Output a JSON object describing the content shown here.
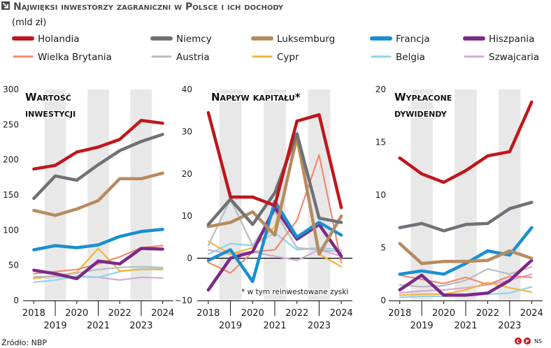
{
  "header": {
    "title": "Najwięksi inwestorzy zagraniczni w Polsce i ich dochody",
    "unit": "(mld zł)"
  },
  "colors": {
    "Holandia": "#c0161b",
    "Niemcy": "#6e7276",
    "Luksemburg": "#b88a5f",
    "Francja": "#1a8fd0",
    "Hiszpania": "#7b2a87",
    "Wielka Brytania": "#ef8a72",
    "Austria": "#b8bdc0",
    "Cypr": "#f2b53a",
    "Belgia": "#8fd3ef",
    "Szwajcaria": "#d2a8d8"
  },
  "legend": [
    "Holandia",
    "Niemcy",
    "Luksemburg",
    "Francja",
    "Hiszpania",
    "Wielka Brytania",
    "Austria",
    "Cypr",
    "Belgia",
    "Szwajcaria"
  ],
  "chart_data": [
    {
      "type": "line",
      "title": [
        "Wartość",
        "inwestycji"
      ],
      "x": [
        2018,
        2019,
        2020,
        2021,
        2022,
        2023,
        2024
      ],
      "x_ticks_top": [
        "2018",
        "2020",
        "2022",
        "2024"
      ],
      "x_ticks_bottom": [
        "2019",
        "2021",
        "2023"
      ],
      "ylim": [
        0,
        300
      ],
      "yticks": [
        0,
        50,
        100,
        150,
        200,
        250,
        300
      ],
      "series": [
        {
          "name": "Holandia",
          "values": [
            187,
            192,
            211,
            218,
            229,
            256,
            252
          ]
        },
        {
          "name": "Niemcy",
          "values": [
            145,
            177,
            171,
            193,
            213,
            226,
            236
          ]
        },
        {
          "name": "Luksemburg",
          "values": [
            128,
            121,
            130,
            142,
            173,
            173,
            181
          ]
        },
        {
          "name": "Francja",
          "values": [
            72,
            78,
            75,
            79,
            91,
            98,
            101
          ]
        },
        {
          "name": "Hiszpania",
          "values": [
            43,
            38,
            31,
            56,
            52,
            74,
            73
          ]
        },
        {
          "name": "Wielka Brytania",
          "values": [
            38,
            41,
            44,
            52,
            62,
            75,
            78
          ]
        },
        {
          "name": "Austria",
          "values": [
            34,
            34,
            39,
            44,
            47,
            48,
            47
          ]
        },
        {
          "name": "Cypr",
          "values": [
            31,
            35,
            40,
            74,
            42,
            44,
            44
          ]
        },
        {
          "name": "Belgia",
          "values": [
            26,
            29,
            35,
            33,
            41,
            45,
            45
          ]
        },
        {
          "name": "Szwajcaria",
          "values": [
            33,
            34,
            34,
            33,
            29,
            33,
            32
          ]
        }
      ]
    },
    {
      "type": "line",
      "title": [
        "Napływ kapitału*"
      ],
      "note": "* w tym reinwestowane zyski",
      "x": [
        2018,
        2019,
        2020,
        2021,
        2022,
        2023,
        2024
      ],
      "x_ticks_top": [
        "2018",
        "2020",
        "2022",
        "2024"
      ],
      "x_ticks_bottom": [
        "2019",
        "2021",
        "2023"
      ],
      "ylim": [
        -10,
        40
      ],
      "yticks": [
        -10,
        0,
        10,
        20,
        30,
        40
      ],
      "zero_line": true,
      "series": [
        {
          "name": "Holandia",
          "values": [
            34.5,
            14.5,
            14.5,
            12.5,
            32.5,
            34.0,
            12.0
          ]
        },
        {
          "name": "Niemcy",
          "values": [
            8.0,
            14.0,
            8.0,
            15.5,
            29.5,
            9.5,
            8.5
          ]
        },
        {
          "name": "Luksemburg",
          "values": [
            7.5,
            8.5,
            11.0,
            5.5,
            29.0,
            1.0,
            10.0
          ]
        },
        {
          "name": "Francja",
          "values": [
            -0.5,
            2.0,
            -5.5,
            13.5,
            5.0,
            8.5,
            5.5
          ]
        },
        {
          "name": "Hiszpania",
          "values": [
            -7.5,
            0.0,
            1.5,
            12.0,
            4.5,
            8.0,
            0.5
          ]
        },
        {
          "name": "Wielka Brytania",
          "values": [
            -1.0,
            -3.5,
            1.5,
            2.0,
            9.0,
            24.5,
            -1.0
          ]
        },
        {
          "name": "Austria",
          "values": [
            3.0,
            14.0,
            3.0,
            11.0,
            2.5,
            2.0,
            1.5
          ]
        },
        {
          "name": "Cypr",
          "values": [
            4.0,
            1.0,
            2.5,
            7.5,
            27.5,
            1.0,
            -2.0
          ]
        },
        {
          "name": "Belgia",
          "values": [
            1.0,
            3.5,
            3.0,
            6.0,
            2.0,
            2.5,
            2.0
          ]
        },
        {
          "name": "Szwajcaria",
          "values": [
            2.0,
            1.0,
            1.5,
            0.5,
            -0.5,
            2.0,
            0.5
          ]
        }
      ]
    },
    {
      "type": "line",
      "title": [
        "Wypłacone",
        "dywidendy"
      ],
      "x": [
        2018,
        2019,
        2020,
        2021,
        2022,
        2023,
        2024
      ],
      "x_ticks_top": [
        "2018",
        "2020",
        "2022",
        "2024"
      ],
      "x_ticks_bottom": [
        "2019",
        "2021",
        "2023"
      ],
      "ylim": [
        0,
        20
      ],
      "yticks": [
        0,
        5,
        10,
        15,
        20
      ],
      "series": [
        {
          "name": "Holandia",
          "values": [
            13.5,
            12.0,
            11.2,
            12.3,
            13.7,
            14.1,
            18.8
          ]
        },
        {
          "name": "Niemcy",
          "values": [
            6.9,
            7.3,
            6.6,
            7.2,
            7.3,
            8.7,
            9.3
          ]
        },
        {
          "name": "Luksemburg",
          "values": [
            5.4,
            3.5,
            3.7,
            3.7,
            3.8,
            4.7,
            4.0
          ]
        },
        {
          "name": "Francja",
          "values": [
            2.5,
            2.8,
            2.5,
            3.5,
            4.7,
            4.3,
            6.9
          ]
        },
        {
          "name": "Hiszpania",
          "values": [
            1.0,
            2.4,
            0.5,
            0.5,
            0.7,
            1.9,
            3.8
          ]
        },
        {
          "name": "Wielka Brytania",
          "values": [
            2.4,
            2.0,
            1.6,
            2.2,
            1.5,
            2.3,
            2.2
          ]
        },
        {
          "name": "Austria",
          "values": [
            1.5,
            1.3,
            1.4,
            1.9,
            3.0,
            2.5,
            3.2
          ]
        },
        {
          "name": "Cypr",
          "values": [
            0.5,
            0.6,
            0.6,
            1.0,
            1.7,
            1.2,
            0.8
          ]
        },
        {
          "name": "Belgia",
          "values": [
            0.3,
            0.4,
            0.4,
            0.5,
            0.6,
            0.7,
            1.3
          ]
        },
        {
          "name": "Szwajcaria",
          "values": [
            0.7,
            0.9,
            1.0,
            1.2,
            1.5,
            1.9,
            2.5
          ]
        }
      ]
    }
  ],
  "footer": {
    "source": "Źródło: NBP",
    "credit": "NS"
  }
}
